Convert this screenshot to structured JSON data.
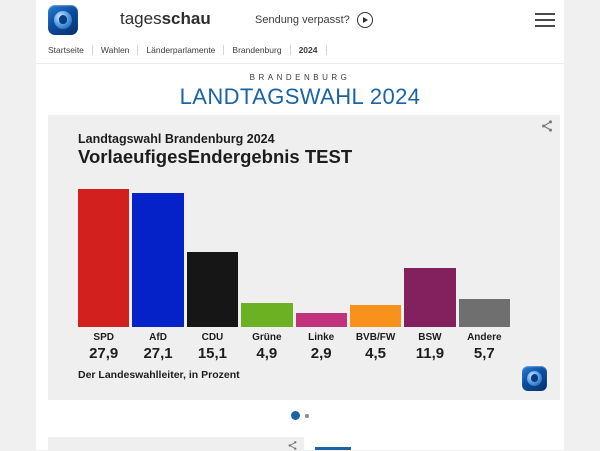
{
  "header": {
    "brand_prefix": "tages",
    "brand_suffix": "schau",
    "missed_show_label": "Sendung verpasst?"
  },
  "breadcrumb": {
    "items": [
      "Startseite",
      "Wahlen",
      "Länderparlamente",
      "Brandenburg",
      "2024"
    ]
  },
  "hero": {
    "kicker": "BRANDENBURG",
    "title": "LANDTAGSWAHL 2024",
    "accent_color": "#1a64a5"
  },
  "chart_card": {
    "title": "Landtagswahl Brandenburg 2024",
    "subtitle": "VorlaeufigesEndergebnis TEST",
    "source": "Der Landeswahlleiter, in Prozent"
  },
  "chart_data": {
    "type": "bar",
    "title": "Landtagswahl Brandenburg 2024",
    "subtitle": "VorlaeufigesEndergebnis TEST",
    "categories": [
      "SPD",
      "AfD",
      "CDU",
      "Grüne",
      "Linke",
      "BVB/FW",
      "BSW",
      "Andere"
    ],
    "values": [
      27.9,
      27.1,
      15.1,
      4.9,
      2.9,
      4.5,
      11.9,
      5.7
    ],
    "value_labels": [
      "27,9",
      "27,1",
      "15,1",
      "4,9",
      "2,9",
      "4,5",
      "11,9",
      "5,7"
    ],
    "colors": [
      "#d2201f",
      "#0522c8",
      "#161616",
      "#6cb121",
      "#c2337d",
      "#f8921c",
      "#83215f",
      "#6f6f6f"
    ],
    "xlabel": "",
    "ylabel": "Prozent",
    "ylim": [
      0,
      30
    ],
    "grid": false,
    "legend": "none",
    "source": "Der Landeswahlleiter, in Prozent"
  },
  "carousel": {
    "dots": [
      {
        "active": true
      },
      {
        "active": false
      }
    ]
  },
  "icons": {
    "share": "share-icon",
    "menu": "menu-icon",
    "play": "play-icon",
    "logo": "tagesschau-logo"
  }
}
